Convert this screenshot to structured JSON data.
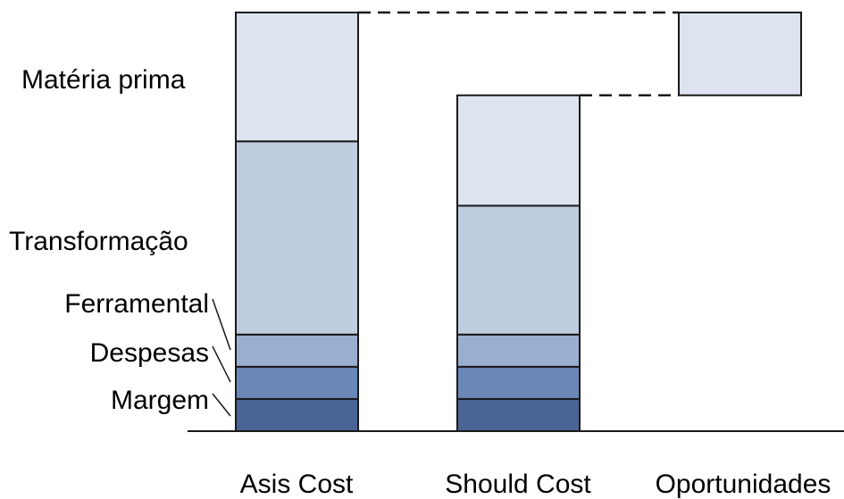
{
  "chart_data": {
    "type": "bar",
    "stacked": true,
    "waterfall": true,
    "categories": [
      "As is Cost",
      "Should Cost",
      "Oportunidades"
    ],
    "category_labels": [
      "Asis Cost",
      "Should Cost",
      "Oportunidades"
    ],
    "series": [
      {
        "name": "Margem",
        "color": "#4a6595",
        "values": [
          7,
          7,
          0
        ]
      },
      {
        "name": "Despesas",
        "color": "#6a87b8",
        "values": [
          7,
          7,
          0
        ]
      },
      {
        "name": "Ferramental",
        "color": "#9aafd0",
        "values": [
          7,
          7,
          0
        ]
      },
      {
        "name": "Transformação",
        "color": "#c0cce0",
        "values": [
          42,
          28,
          0
        ]
      },
      {
        "name": "Matéria prima",
        "color": "#dde3ef",
        "values": [
          28,
          24,
          0
        ]
      }
    ],
    "opportunity": {
      "base": 73,
      "value": 18,
      "color": "#dde3ef"
    },
    "segment_labels": [
      "Matéria prima",
      "Transformação",
      "Ferramental",
      "Despesas",
      "Margem"
    ],
    "ylim": [
      0,
      91
    ],
    "grid": false,
    "outline_color": "#1a1a1a"
  }
}
